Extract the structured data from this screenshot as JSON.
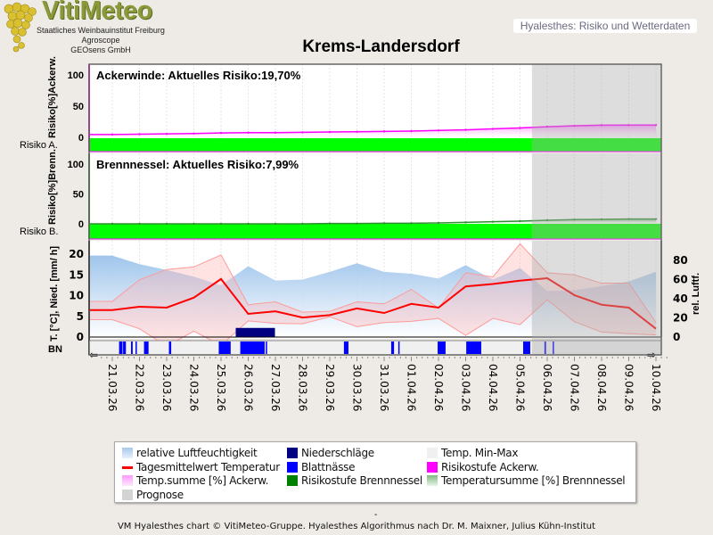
{
  "logo": {
    "brand": "VitiMeteo",
    "lines": [
      "Staatliches Weinbauinstitut Freiburg",
      "Agroscope",
      "GEOsens GmbH"
    ]
  },
  "header": {
    "tab_label": "Hyalesthes: Risiko und Wetterdaten"
  },
  "title": "Krems-Landersdorf",
  "footer": {
    "dash": "-",
    "credit": "VM Hyalesthes chart © VitiMeteo-Gruppe. Hyalesthes Algorithmus nach Dr. M. Maixner, Julius Kühn-Institut"
  },
  "colors": {
    "risk_green": "#00ff00",
    "ackerwinde": "#ff00ff",
    "brennnessel": "#008000",
    "temp_mean": "#ff0000",
    "humidity": "#a8c8ec",
    "precip": "#000080",
    "leaf_wetness": "#0000ff",
    "prognose": "#d4d4d4"
  },
  "chart_data": [
    {
      "type": "area",
      "panel": "ackerwinde",
      "annotation": "Ackerwinde:  Aktuelles Risiko:19,70%",
      "ylabel": "Risiko[%]Ackerw.",
      "band_label": "Risiko A.",
      "ylim": [
        0,
        100
      ],
      "yticks": [
        "100",
        "50",
        "0"
      ],
      "risk_level": "green",
      "x": [
        "21.03.26",
        "22.03.26",
        "23.03.26",
        "24.03.26",
        "25.03.26",
        "26.03.26",
        "27.03.26",
        "28.03.26",
        "29.03.26",
        "30.03.26",
        "31.03.26",
        "01.04.26",
        "02.04.26",
        "03.04.26",
        "04.04.26",
        "05.04.26",
        "06.04.26",
        "07.04.26",
        "08.04.26",
        "09.04.26",
        "10.04.26"
      ],
      "values": [
        4.5,
        5,
        5.5,
        6,
        7,
        7.5,
        7.5,
        8,
        8.5,
        9,
        9.5,
        10,
        11,
        12,
        13.5,
        15,
        17,
        18.5,
        19.5,
        19.7,
        19.7
      ]
    },
    {
      "type": "area",
      "panel": "brennnessel",
      "annotation": "Brennnessel:  Aktuelles Risiko:7,99%",
      "ylabel": "Risiko[%]Brenn.",
      "band_label": "Risiko B.",
      "ylim": [
        0,
        100
      ],
      "yticks": [
        "100",
        "50",
        "0"
      ],
      "risk_level": "green",
      "x": [
        "21.03.26",
        "22.03.26",
        "23.03.26",
        "24.03.26",
        "25.03.26",
        "26.03.26",
        "27.03.26",
        "28.03.26",
        "29.03.26",
        "30.03.26",
        "31.03.26",
        "01.04.26",
        "02.04.26",
        "03.04.26",
        "04.04.26",
        "05.04.26",
        "06.04.26",
        "07.04.26",
        "08.04.26",
        "09.04.26",
        "10.04.26"
      ],
      "values": [
        0,
        0,
        0,
        0,
        0,
        0,
        0,
        0,
        0.5,
        0.5,
        1,
        1,
        1.5,
        2.5,
        3.5,
        4.5,
        6,
        7,
        7.5,
        8,
        8
      ]
    },
    {
      "type": "line",
      "panel": "weather",
      "ylabel": "T. [°C], Nied. [mm/ h]",
      "ylabel_right": "rel. Luftf.",
      "ylim": [
        -1,
        23
      ],
      "yticks": [
        "0",
        "5",
        "10",
        "15",
        "20"
      ],
      "ylim_right": [
        0,
        100
      ],
      "yticks_right": [
        "0",
        "20",
        "40",
        "60",
        "80"
      ],
      "strip_label": "BN",
      "x": [
        "21.03.26",
        "22.03.26",
        "23.03.26",
        "24.03.26",
        "25.03.26",
        "26.03.26",
        "27.03.26",
        "28.03.26",
        "29.03.26",
        "30.03.26",
        "31.03.26",
        "01.04.26",
        "02.04.26",
        "03.04.26",
        "04.04.26",
        "05.04.26",
        "06.04.26",
        "07.04.26",
        "08.04.26",
        "09.04.26",
        "10.04.26"
      ],
      "series": [
        {
          "key": "humidity",
          "values": [
            85,
            76,
            70,
            63,
            54,
            74,
            59,
            60,
            68,
            77,
            68,
            66,
            61,
            75,
            60,
            72,
            48,
            49,
            53,
            58,
            68
          ]
        },
        {
          "key": "temp_mean",
          "values": [
            6.5,
            7.3,
            7.1,
            9.5,
            14.0,
            5.6,
            6.2,
            4.7,
            5.3,
            6.9,
            5.8,
            8.0,
            7.1,
            12.2,
            12.8,
            13.6,
            14.2,
            10.1,
            7.8,
            7.1,
            2.0
          ]
        },
        {
          "key": "temp_max",
          "values": [
            8.6,
            13.8,
            16.3,
            16.9,
            19.8,
            7.8,
            8.5,
            6.0,
            6.2,
            8.5,
            8.0,
            11.5,
            7.0,
            15.5,
            14.5,
            22.5,
            15.5,
            15.0,
            13.0,
            13.0,
            3.5
          ]
        },
        {
          "key": "temp_min",
          "values": [
            4.2,
            2.0,
            -2.2,
            1.4,
            -2.0,
            3.9,
            3.3,
            3.2,
            4.9,
            2.5,
            3.5,
            3.8,
            4.5,
            0.4,
            4.5,
            3.0,
            9.0,
            3.7,
            1.2,
            0.8,
            0.5
          ]
        }
      ],
      "precipitation": [
        {
          "date": "26.03.26",
          "mm": 2.2
        }
      ],
      "leaf_wetness": [
        [
          "21.03 06:00",
          "21.03 09:00"
        ],
        [
          "21.03 09:30",
          "21.03 12:00"
        ],
        [
          "21.03 16:30",
          "21.03 18:00"
        ],
        [
          "21.03 20:30",
          "21.03 21:00"
        ],
        [
          "22.03 04:00",
          "22.03 08:00"
        ],
        [
          "23.03 02:00",
          "23.03 04:00"
        ],
        [
          "24.03 22:00",
          "25.03 08:30"
        ],
        [
          "25.03 17:00",
          "26.03 14:30"
        ],
        [
          "26.03 15:30",
          "26.03 16:00"
        ],
        [
          "29.03 12:30",
          "29.03 16:30"
        ],
        [
          "31.03 06:15",
          "31.03 08:45"
        ],
        [
          "31.03 12:30",
          "31.03 13:00"
        ],
        [
          "01.04 23:15",
          "02.04 06:15"
        ],
        [
          "03.04 00:30",
          "03.04 13:45"
        ],
        [
          "05.04 02:45",
          "05.04 09:00"
        ],
        [
          "05.04 21:30",
          "05.04 23:00"
        ],
        [
          "06.04 04:45",
          "06.04 06:00"
        ]
      ],
      "prognose_start": "05.04 10:30"
    }
  ],
  "legend": [
    {
      "label": "relative Luftfeuchtigkeit",
      "swatch": "humidity-gradient"
    },
    {
      "label": "Niederschläge",
      "swatch": "#000080"
    },
    {
      "label": "Temp. Min-Max",
      "swatch": "#f0f0f0"
    },
    {
      "label": "Tagesmittelwert Temperatur",
      "swatch": "red-line"
    },
    {
      "label": "Blattnässe",
      "swatch": "#0000ff"
    },
    {
      "label": "Risikostufe Ackerw.",
      "swatch": "#ff00ff"
    },
    {
      "label": "Temp.summe [%] Ackerw.",
      "swatch": "pink-gradient"
    },
    {
      "label": "Risikostufe Brennnessel",
      "swatch": "#008000"
    },
    {
      "label": "Temperatursumme [%] Brennnessel",
      "swatch": "green-gradient"
    },
    {
      "label": "Prognose",
      "swatch": "#d4d4d4"
    }
  ]
}
